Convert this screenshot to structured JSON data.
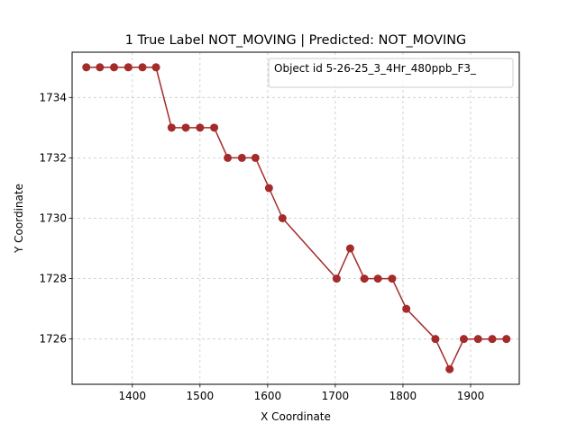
{
  "chart_data": {
    "type": "line",
    "title": "1 True Label NOT_MOVING | Predicted: NOT_MOVING",
    "xlabel": "X Coordinate",
    "ylabel": "Y Coordinate",
    "xlim": [
      1311,
      1972
    ],
    "ylim": [
      1724.5,
      1735.5
    ],
    "xticks": [
      1400,
      1500,
      1600,
      1700,
      1800,
      1900
    ],
    "yticks": [
      1726,
      1728,
      1730,
      1732,
      1734
    ],
    "grid": true,
    "legend_position": "top-right",
    "series": [
      {
        "name": "Object id 5-26-25_3_4Hr_480ppb_F3_",
        "color": "#a52a2a",
        "x": [
          1332,
          1352,
          1373,
          1394,
          1415,
          1435,
          1458,
          1479,
          1500,
          1521,
          1541,
          1562,
          1582,
          1602,
          1622,
          1702,
          1722,
          1743,
          1763,
          1784,
          1805,
          1848,
          1869,
          1890,
          1911,
          1932,
          1953
        ],
        "y": [
          1735,
          1735,
          1735,
          1735,
          1735,
          1735,
          1733,
          1733,
          1733,
          1733,
          1732,
          1732,
          1732,
          1731,
          1730,
          1728,
          1729,
          1728,
          1728,
          1728,
          1727,
          1726,
          1725,
          1726,
          1726,
          1726,
          1726
        ]
      }
    ]
  }
}
